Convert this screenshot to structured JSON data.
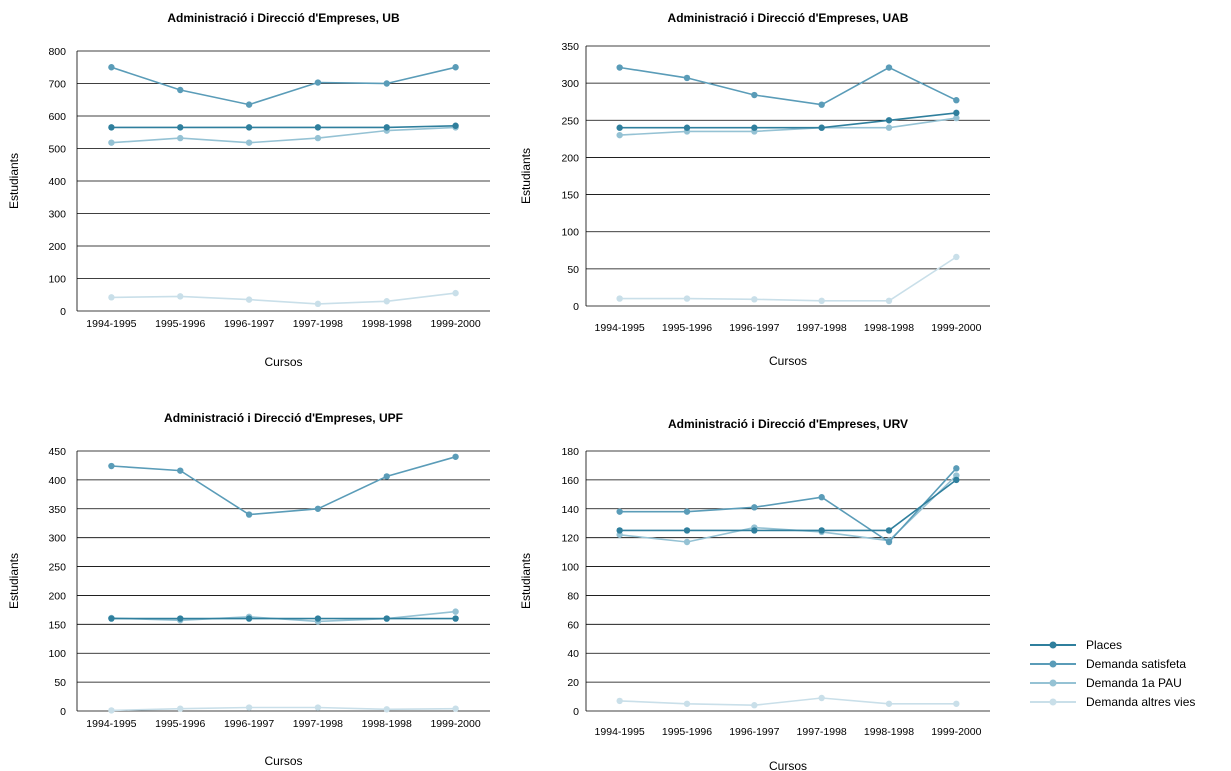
{
  "legend": [
    {
      "name": "Places",
      "color": "#2f7f9d"
    },
    {
      "name": "Demanda satisfeta",
      "color": "#5a9cb8"
    },
    {
      "name": "Demanda 1a PAU",
      "color": "#95c2d4"
    },
    {
      "name": "Demanda altres vies",
      "color": "#c9dfe9"
    }
  ],
  "chart_data": [
    {
      "type": "line",
      "title": "Administració i Direcció d'Empreses, UB",
      "xlabel": "Cursos",
      "ylabel": "Estudiants",
      "categories": [
        "1994-1995",
        "1995-1996",
        "1996-1997",
        "1997-1998",
        "1998-1998",
        "1999-2000"
      ],
      "ylim": [
        0,
        800
      ],
      "yticks": [
        0,
        100,
        200,
        300,
        400,
        500,
        600,
        700,
        800
      ],
      "grid": true,
      "legend_position": "right",
      "series": [
        {
          "name": "Places",
          "values": [
            565,
            565,
            565,
            565,
            565,
            570
          ]
        },
        {
          "name": "Demanda satisfeta",
          "values": [
            750,
            680,
            635,
            703,
            700,
            750
          ]
        },
        {
          "name": "Demanda 1a PAU",
          "values": [
            518,
            532,
            518,
            532,
            555,
            565
          ]
        },
        {
          "name": "Demanda altres vies",
          "values": [
            42,
            45,
            35,
            22,
            30,
            55
          ]
        }
      ]
    },
    {
      "type": "line",
      "title": "Administració i Direcció d'Empreses, UAB",
      "xlabel": "Cursos",
      "ylabel": "Estudiants",
      "categories": [
        "1994-1995",
        "1995-1996",
        "1996-1997",
        "1997-1998",
        "1998-1998",
        "1999-2000"
      ],
      "ylim": [
        0,
        350
      ],
      "yticks": [
        0,
        50,
        100,
        150,
        200,
        250,
        300,
        350
      ],
      "grid": true,
      "legend_position": "right",
      "series": [
        {
          "name": "Places",
          "values": [
            240,
            240,
            240,
            240,
            250,
            260
          ]
        },
        {
          "name": "Demanda satisfeta",
          "values": [
            321,
            307,
            284,
            271,
            321,
            277
          ]
        },
        {
          "name": "Demanda 1a PAU",
          "values": [
            230,
            235,
            235,
            240,
            240,
            253
          ]
        },
        {
          "name": "Demanda altres vies",
          "values": [
            10,
            10,
            9,
            7,
            7,
            66
          ]
        }
      ]
    },
    {
      "type": "line",
      "title": "Administració i Direcció d'Empreses, UPF",
      "xlabel": "Cursos",
      "ylabel": "Estudiants",
      "categories": [
        "1994-1995",
        "1995-1996",
        "1996-1997",
        "1997-1998",
        "1998-1998",
        "1999-2000"
      ],
      "ylim": [
        0,
        450
      ],
      "yticks": [
        0,
        50,
        100,
        150,
        200,
        250,
        300,
        350,
        400,
        450
      ],
      "grid": true,
      "legend_position": "right",
      "series": [
        {
          "name": "Places",
          "values": [
            160,
            160,
            160,
            160,
            160,
            160
          ]
        },
        {
          "name": "Demanda satisfeta",
          "values": [
            424,
            416,
            340,
            350,
            406,
            440
          ]
        },
        {
          "name": "Demanda 1a PAU",
          "values": [
            161,
            157,
            163,
            155,
            160,
            172
          ]
        },
        {
          "name": "Demanda altres vies",
          "values": [
            1,
            4,
            6,
            6,
            3,
            4
          ]
        }
      ]
    },
    {
      "type": "line",
      "title": "Administració i Direcció d'Empreses, URV",
      "xlabel": "Cursos",
      "ylabel": "Estudiants",
      "categories": [
        "1994-1995",
        "1995-1996",
        "1996-1997",
        "1997-1998",
        "1998-1998",
        "1999-2000"
      ],
      "ylim": [
        0,
        180
      ],
      "yticks": [
        0,
        20,
        40,
        60,
        80,
        100,
        120,
        140,
        160,
        180
      ],
      "grid": true,
      "legend_position": "right",
      "series": [
        {
          "name": "Places",
          "values": [
            125,
            125,
            125,
            125,
            125,
            160
          ]
        },
        {
          "name": "Demanda satisfeta",
          "values": [
            138,
            138,
            141,
            148,
            117,
            168
          ]
        },
        {
          "name": "Demanda 1a PAU",
          "values": [
            122,
            117,
            127,
            124,
            118,
            163
          ]
        },
        {
          "name": "Demanda altres vies",
          "values": [
            7,
            5,
            4,
            9,
            5,
            5
          ]
        }
      ]
    }
  ]
}
